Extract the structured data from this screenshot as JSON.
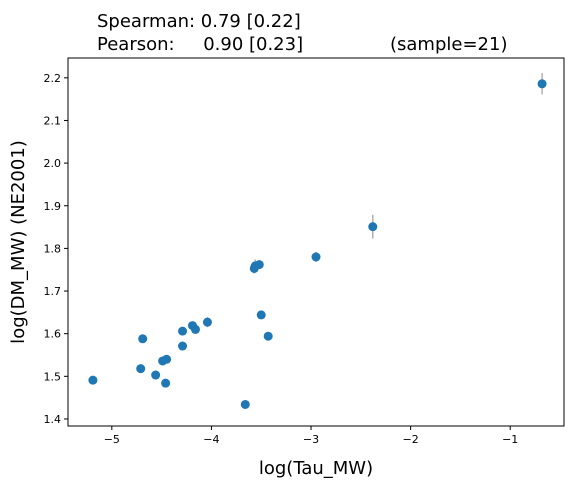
{
  "title": {
    "line1": "Spearman: 0.79 [0.22]",
    "line2_stat": "Pearson:     0.90 [0.23]",
    "line2_sample": "(sample=21)"
  },
  "chart_data": {
    "type": "scatter",
    "xlabel": "log(Tau_MW)",
    "ylabel": "log(DM_MW) (NE2001)",
    "xlim": [
      -5.44,
      -0.46
    ],
    "ylim": [
      1.3835,
      2.2465
    ],
    "xticks": [
      -5,
      -4,
      -3,
      -2,
      -1
    ],
    "xtick_labels": [
      "−5",
      "−4",
      "−3",
      "−2",
      "−1"
    ],
    "yticks": [
      1.4,
      1.5,
      1.6,
      1.7,
      1.8,
      1.9,
      2.0,
      2.1,
      2.2
    ],
    "ytick_labels": [
      "1.4",
      "1.5",
      "1.6",
      "1.7",
      "1.8",
      "1.9",
      "2.0",
      "2.1",
      "2.2"
    ],
    "grid": false,
    "marker_color": "#1f77b4",
    "errorbar_color": "#b0b0b0",
    "points": [
      {
        "x": -5.19,
        "y": 1.491,
        "yerr": 0.007
      },
      {
        "x": -4.71,
        "y": 1.518,
        "yerr": 0.006
      },
      {
        "x": -4.69,
        "y": 1.588,
        "yerr": 0.006
      },
      {
        "x": -4.56,
        "y": 1.503,
        "yerr": 0.006
      },
      {
        "x": -4.49,
        "y": 1.536,
        "yerr": 0.006
      },
      {
        "x": -4.46,
        "y": 1.484,
        "yerr": 0.006
      },
      {
        "x": -4.45,
        "y": 1.54,
        "yerr": 0.006
      },
      {
        "x": -4.29,
        "y": 1.571,
        "yerr": 0.006
      },
      {
        "x": -4.29,
        "y": 1.606,
        "yerr": 0.008
      },
      {
        "x": -4.19,
        "y": 1.619,
        "yerr": 0.006
      },
      {
        "x": -4.16,
        "y": 1.61,
        "yerr": 0.006
      },
      {
        "x": -4.04,
        "y": 1.627,
        "yerr": 0.012
      },
      {
        "x": -3.66,
        "y": 1.434,
        "yerr": 0.006
      },
      {
        "x": -3.57,
        "y": 1.753,
        "yerr": 0.012
      },
      {
        "x": -3.56,
        "y": 1.759,
        "yerr": 0.015
      },
      {
        "x": -3.52,
        "y": 1.762,
        "yerr": 0.01
      },
      {
        "x": -3.5,
        "y": 1.644,
        "yerr": 0.006
      },
      {
        "x": -3.43,
        "y": 1.594,
        "yerr": 0.006
      },
      {
        "x": -2.95,
        "y": 1.78,
        "yerr": 0.012
      },
      {
        "x": -2.38,
        "y": 1.851,
        "yerr": 0.028
      },
      {
        "x": -0.68,
        "y": 2.186,
        "yerr": 0.025
      }
    ]
  }
}
